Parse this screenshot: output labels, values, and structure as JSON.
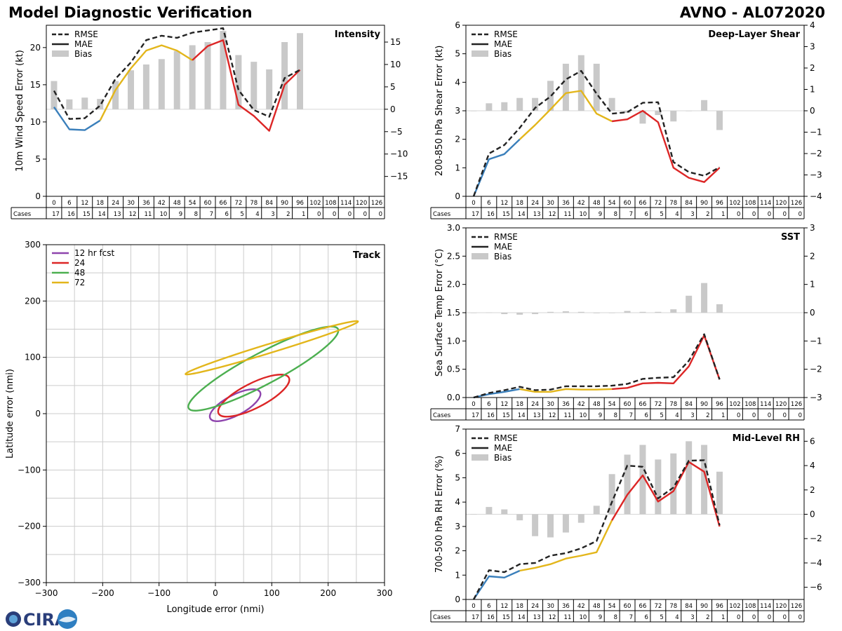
{
  "header": {
    "title": "Model Diagnostic Verification",
    "storm_label": "AVNO - AL072020"
  },
  "colors": {
    "early": "#3a7fbb",
    "mid": "#e3b61b",
    "late": "#dc2626",
    "rmse": "#222222",
    "bias": "#c9c9c9",
    "grid": "#cccccc",
    "track12": "#8e44ad",
    "track24": "#dc2626",
    "track48": "#4caf50",
    "track72": "#e3b61b"
  },
  "legend_labels": [
    "RMSE",
    "MAE",
    "Bias"
  ],
  "table": {
    "header_label": "Cases",
    "hours": [
      "0",
      "6",
      "12",
      "18",
      "24",
      "30",
      "36",
      "42",
      "48",
      "54",
      "60",
      "66",
      "72",
      "78",
      "84",
      "90",
      "96",
      "102",
      "108",
      "114",
      "120",
      "126"
    ],
    "counts": [
      "17",
      "16",
      "15",
      "14",
      "13",
      "12",
      "11",
      "10",
      "9",
      "8",
      "7",
      "6",
      "5",
      "4",
      "3",
      "2",
      "1",
      "0",
      "0",
      "0",
      "0",
      "0"
    ]
  },
  "logo": {
    "text": "CIRA"
  },
  "chart_data": [
    {
      "id": "intensity",
      "type": "line",
      "title": "Intensity",
      "ylabel": "10m Wind Speed Error (kt)",
      "ylim": [
        0,
        23
      ],
      "yticks": [
        0,
        5,
        10,
        15,
        20
      ],
      "y2lim": [
        -19.44,
        18.76
      ],
      "y2ticks": [
        -15,
        -10,
        -5,
        0,
        5,
        10,
        15
      ],
      "x": [
        0,
        6,
        12,
        18,
        24,
        30,
        36,
        42,
        48,
        54,
        60,
        66,
        72,
        78,
        84,
        90,
        96
      ],
      "rmse": [
        14.2,
        10.4,
        10.5,
        12.2,
        15.8,
        18.0,
        21.0,
        21.6,
        21.3,
        22.0,
        22.3,
        22.6,
        14.3,
        11.6,
        10.7,
        15.9,
        17.0
      ],
      "mae": [
        12.0,
        9.0,
        8.9,
        10.2,
        14.3,
        17.2,
        19.6,
        20.3,
        19.6,
        18.3,
        20.2,
        21.0,
        12.3,
        10.8,
        8.8,
        15.0,
        17.0
      ],
      "bias": [
        6.3,
        2.2,
        2.6,
        2.3,
        6.3,
        8.7,
        10.0,
        11.2,
        13.0,
        14.3,
        15.0,
        17.5,
        12.1,
        10.6,
        8.9,
        15.0,
        17.0
      ]
    },
    {
      "id": "shear",
      "type": "line",
      "title": "Deep-Layer Shear",
      "ylabel": "200-850 hPa Shear Error (kt)",
      "ylim": [
        0,
        6
      ],
      "yticks": [
        0,
        1,
        2,
        3,
        4,
        5,
        6
      ],
      "y2lim": [
        -4,
        4
      ],
      "y2ticks": [
        -4,
        -3,
        -2,
        -1,
        0,
        1,
        2,
        3,
        4
      ],
      "x": [
        0,
        6,
        12,
        18,
        24,
        30,
        36,
        42,
        48,
        54,
        60,
        66,
        72,
        78,
        84,
        90,
        96
      ],
      "rmse": [
        0.0,
        1.5,
        1.8,
        2.4,
        3.1,
        3.5,
        4.1,
        4.4,
        3.6,
        2.9,
        2.95,
        3.28,
        3.3,
        1.2,
        0.85,
        0.72,
        1.02
      ],
      "mae": [
        0.0,
        1.3,
        1.48,
        2.0,
        2.5,
        3.05,
        3.62,
        3.7,
        2.9,
        2.63,
        2.7,
        3.0,
        2.6,
        1.0,
        0.65,
        0.5,
        1.0
      ],
      "bias": [
        0.0,
        0.35,
        0.4,
        0.6,
        0.6,
        1.4,
        2.2,
        2.6,
        2.2,
        0.6,
        -0.1,
        -0.6,
        -0.2,
        -0.5,
        0.0,
        0.5,
        -0.9
      ]
    },
    {
      "id": "sst",
      "type": "line",
      "title": "SST",
      "ylabel": "Sea Surface Temp Error (°C)",
      "ylim": [
        0,
        3
      ],
      "yticks": [
        0.0,
        0.5,
        1.0,
        1.5,
        2.0,
        2.5,
        3.0
      ],
      "y2lim": [
        -3,
        3
      ],
      "y2ticks": [
        -3,
        -2,
        -1,
        0,
        1,
        2,
        3
      ],
      "x": [
        0,
        6,
        12,
        18,
        24,
        30,
        36,
        42,
        48,
        54,
        60,
        66,
        72,
        78,
        84,
        90,
        96
      ],
      "rmse": [
        0.0,
        0.08,
        0.13,
        0.19,
        0.13,
        0.14,
        0.2,
        0.2,
        0.2,
        0.21,
        0.24,
        0.33,
        0.35,
        0.36,
        0.65,
        1.12,
        0.32
      ],
      "mae": [
        0.0,
        0.06,
        0.1,
        0.15,
        0.1,
        0.1,
        0.15,
        0.14,
        0.14,
        0.15,
        0.17,
        0.25,
        0.26,
        0.25,
        0.55,
        1.1,
        0.32
      ],
      "bias": [
        0.0,
        0.01,
        -0.05,
        -0.07,
        -0.05,
        0.03,
        0.05,
        0.03,
        -0.02,
        0.0,
        0.06,
        0.03,
        0.03,
        0.12,
        0.6,
        1.05,
        0.3
      ]
    },
    {
      "id": "rh",
      "type": "line",
      "title": "Mid-Level RH",
      "ylabel": "700-500 hPa RH Error (%)",
      "ylim": [
        0,
        7
      ],
      "yticks": [
        0,
        1,
        2,
        3,
        4,
        5,
        6,
        7
      ],
      "y2lim": [
        -7,
        7
      ],
      "y2ticks": [
        -6,
        -4,
        -2,
        0,
        2,
        4,
        6
      ],
      "x": [
        0,
        6,
        12,
        18,
        24,
        30,
        36,
        42,
        48,
        54,
        60,
        66,
        72,
        78,
        84,
        90,
        96
      ],
      "rmse": [
        0.0,
        1.2,
        1.12,
        1.45,
        1.5,
        1.8,
        1.9,
        2.1,
        2.4,
        4.0,
        5.5,
        5.45,
        4.15,
        4.6,
        5.7,
        5.72,
        3.05
      ],
      "mae": [
        0.0,
        0.95,
        0.9,
        1.18,
        1.3,
        1.45,
        1.68,
        1.8,
        1.94,
        3.25,
        4.3,
        5.1,
        4.02,
        4.45,
        5.65,
        5.25,
        3.0
      ],
      "bias": [
        0.0,
        0.6,
        0.4,
        -0.5,
        -1.8,
        -1.9,
        -1.5,
        -0.7,
        0.7,
        3.3,
        4.9,
        5.7,
        4.5,
        5.0,
        6.0,
        5.7,
        3.5
      ]
    },
    {
      "id": "track",
      "type": "scatter",
      "title": "Track",
      "xlabel": "Longitude error (nmi)",
      "ylabel": "Latitude error (nmi)",
      "xlim": [
        -300,
        300
      ],
      "ylim": [
        -300,
        300
      ],
      "xticks": [
        -300,
        -200,
        -100,
        0,
        100,
        200,
        300
      ],
      "yticks": [
        -300,
        -200,
        -100,
        0,
        100,
        200,
        300
      ],
      "legend": [
        "12 hr fcst",
        "24",
        "48",
        "72"
      ],
      "ellipses": [
        {
          "label": "12 hr fcst",
          "cx": 35,
          "cy": 15,
          "a": 50,
          "b": 18,
          "angle_deg": 28
        },
        {
          "label": "24",
          "cx": 68,
          "cy": 32,
          "a": 70,
          "b": 22,
          "angle_deg": 27
        },
        {
          "label": "48",
          "cx": 85,
          "cy": 80,
          "a": 150,
          "b": 28,
          "angle_deg": 28
        },
        {
          "label": "72",
          "cx": 100,
          "cy": 117,
          "a": 160,
          "b": 8,
          "angle_deg": 17
        }
      ]
    }
  ]
}
